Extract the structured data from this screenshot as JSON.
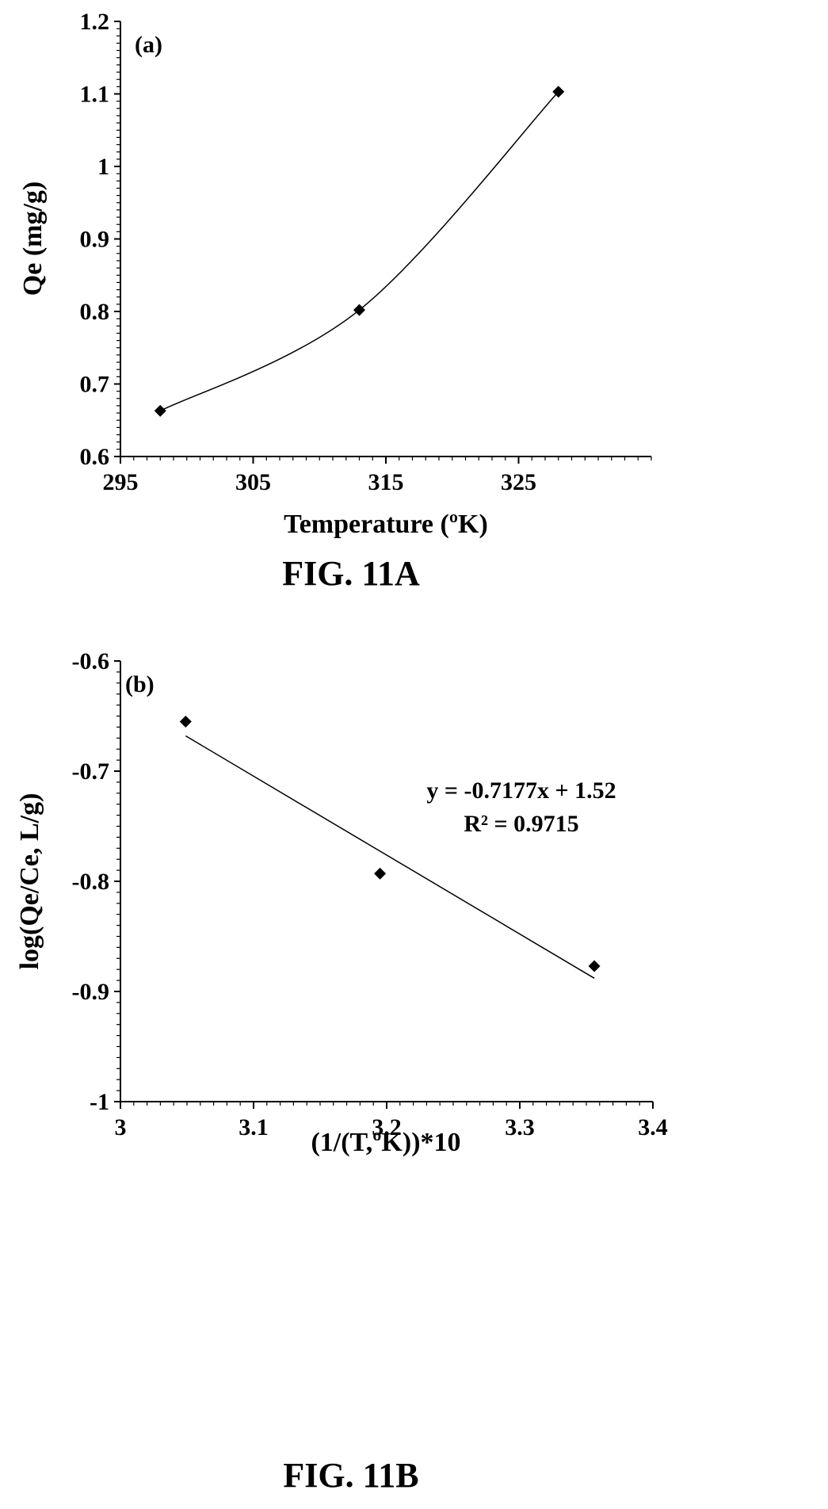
{
  "chart_data": [
    {
      "type": "scatter",
      "panel_label": "(a)",
      "caption": "FIG. 11A",
      "xlabel": "Temperature (ºK)",
      "ylabel": "Qe (mg/g)",
      "xlim": [
        295,
        335
      ],
      "ylim": [
        0.6,
        1.2
      ],
      "x_ticks": [
        295,
        305,
        315,
        325
      ],
      "x_tick_labels": [
        "295",
        "305",
        "315",
        "325"
      ],
      "y_ticks": [
        0.6,
        0.7,
        0.8,
        0.9,
        1.0,
        1.1,
        1.2
      ],
      "y_tick_labels": [
        "0.6",
        "0.7",
        "0.8",
        "0.9",
        "1",
        "1.1",
        "1.2"
      ],
      "series": [
        {
          "x": [
            298,
            313,
            328
          ],
          "y": [
            0.663,
            0.802,
            1.103
          ],
          "marker": "diamond",
          "smooth_line": true
        }
      ],
      "grid": false
    },
    {
      "type": "scatter",
      "panel_label": "(b)",
      "caption": "FIG. 11B",
      "xlabel": "(1/(T,ºK))*10",
      "ylabel": "log(Qe/Ce, L/g)",
      "xlim": [
        3.0,
        3.4
      ],
      "ylim": [
        -1.0,
        -0.6
      ],
      "x_ticks": [
        3.0,
        3.1,
        3.2,
        3.3,
        3.4
      ],
      "x_tick_labels": [
        "3",
        "3.1",
        "3.2",
        "3.3",
        "3.4"
      ],
      "y_ticks": [
        -1.0,
        -0.9,
        -0.8,
        -0.7,
        -0.6
      ],
      "y_tick_labels": [
        "-1",
        "-0.9",
        "-0.8",
        "-0.7",
        "-0.6"
      ],
      "series": [
        {
          "x": [
            3.049,
            3.195,
            3.356
          ],
          "y": [
            -0.655,
            -0.793,
            -0.877
          ],
          "marker": "diamond"
        }
      ],
      "trendline": {
        "slope": -0.7177,
        "intercept": 1.52,
        "x_range": [
          3.049,
          3.356
        ],
        "y_range": [
          -0.668,
          -0.888
        ]
      },
      "annotation": [
        "y = -0.7177x + 1.52",
        "R² = 0.9715"
      ],
      "grid": false
    }
  ]
}
